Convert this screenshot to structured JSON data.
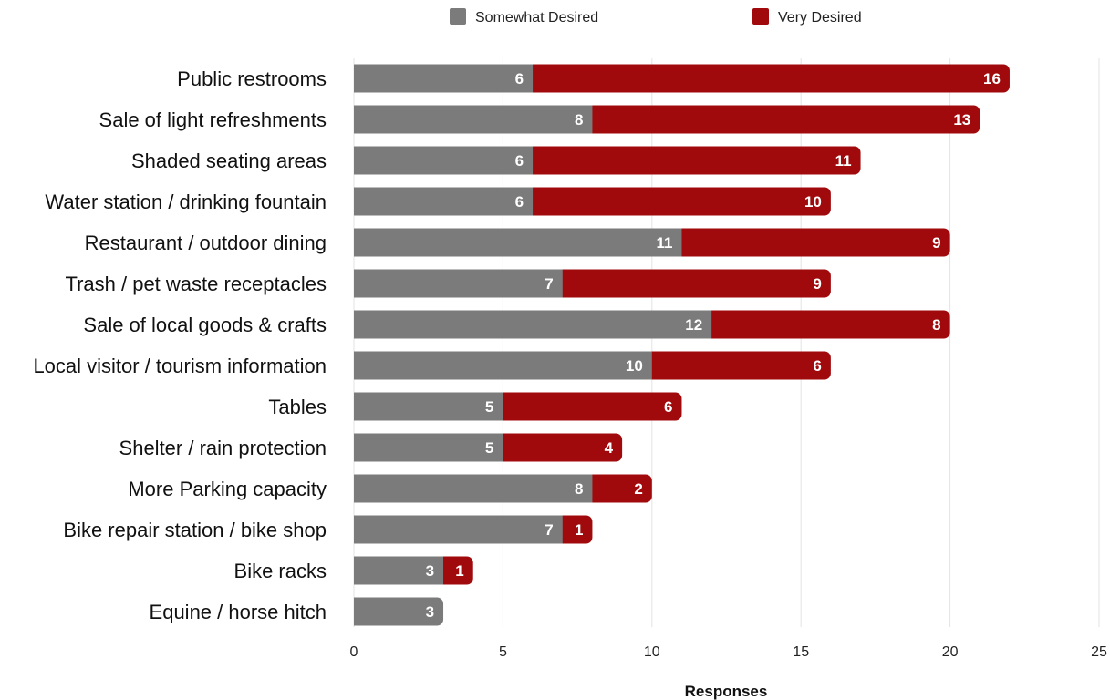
{
  "chart_data": {
    "type": "bar",
    "orientation": "horizontal",
    "stacked": true,
    "title": "",
    "xlabel": "Responses",
    "ylabel": "",
    "xlim": [
      0,
      25
    ],
    "x_ticks": [
      0,
      5,
      10,
      15,
      20,
      25
    ],
    "grid": true,
    "legend_placement": "top",
    "categories": [
      "Public restrooms",
      "Sale of light refreshments",
      "Shaded seating areas",
      "Water station / drinking fountain",
      "Restaurant / outdoor dining",
      "Trash / pet waste receptacles",
      "Sale of local goods & crafts",
      "Local visitor / tourism information",
      "Tables",
      "Shelter / rain protection",
      "More Parking capacity",
      "Bike repair station / bike shop",
      "Bike racks",
      "Equine / horse hitch"
    ],
    "series": [
      {
        "name": "Somewhat Desired",
        "color": "#7b7b7b",
        "values": [
          6,
          8,
          6,
          6,
          11,
          7,
          12,
          10,
          5,
          5,
          8,
          7,
          3,
          3
        ]
      },
      {
        "name": "Very Desired",
        "color": "#a00a0c",
        "values": [
          16,
          13,
          11,
          10,
          9,
          9,
          8,
          6,
          6,
          4,
          2,
          1,
          1,
          0
        ]
      }
    ]
  }
}
